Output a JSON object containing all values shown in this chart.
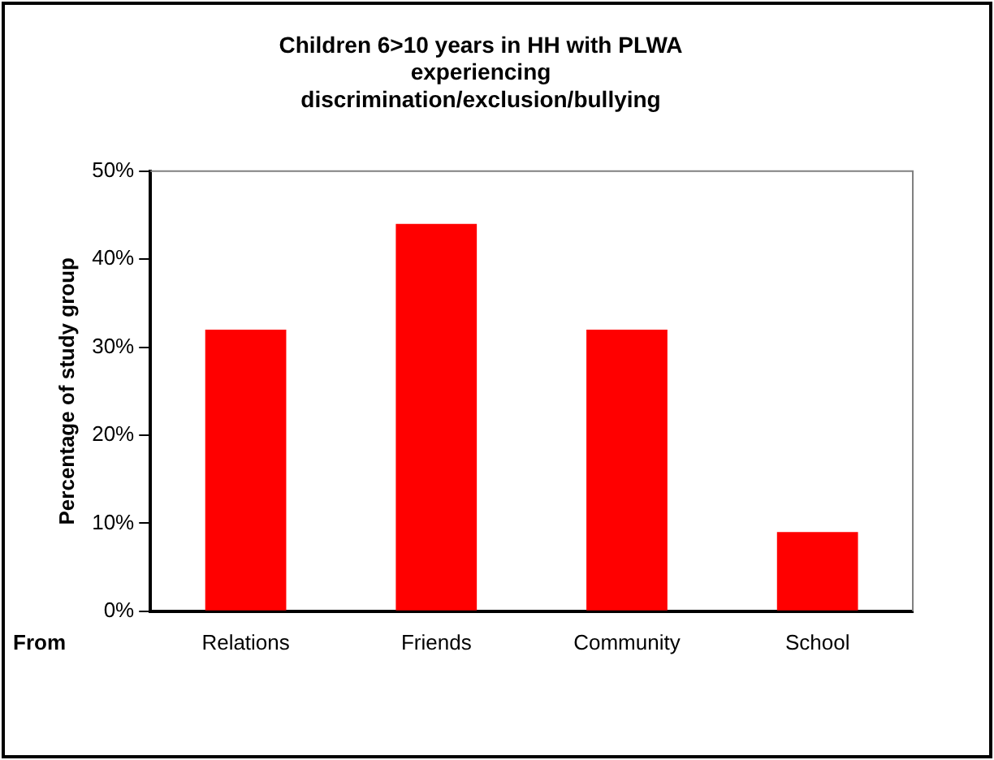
{
  "chart_data": {
    "type": "bar",
    "title": "Children 6>10 years in HH with PLWA\nexperiencing\ndiscrimination/exclusion/bullying",
    "xlabel": "From",
    "ylabel": "Percentage of study group",
    "categories": [
      "Relations",
      "Friends",
      "Community",
      "School"
    ],
    "values": [
      32,
      44,
      32,
      9
    ],
    "color": "#ff0000",
    "ylim": [
      0,
      50
    ],
    "yticks": [
      {
        "value": 0,
        "label": "0%"
      },
      {
        "value": 10,
        "label": "10%"
      },
      {
        "value": 20,
        "label": "20%"
      },
      {
        "value": 30,
        "label": "30%"
      },
      {
        "value": 40,
        "label": "40%"
      },
      {
        "value": 50,
        "label": "50%"
      }
    ],
    "grid": false,
    "legend": false
  }
}
